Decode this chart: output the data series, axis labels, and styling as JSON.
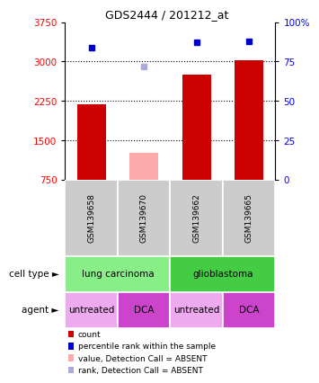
{
  "title": "GDS2444 / 201212_at",
  "samples": [
    "GSM139658",
    "GSM139670",
    "GSM139662",
    "GSM139665"
  ],
  "bar_values": [
    2180,
    1250,
    2750,
    3020
  ],
  "bar_colors": [
    "#cc0000",
    "#ffaaaa",
    "#cc0000",
    "#cc0000"
  ],
  "dot_pct": [
    84,
    72,
    87,
    88
  ],
  "dot_colors": [
    "#0000cc",
    "#aaaadd",
    "#0000cc",
    "#0000cc"
  ],
  "ylim_left": [
    750,
    3750
  ],
  "yticks_left": [
    750,
    1500,
    2250,
    3000,
    3750
  ],
  "yticks_right": [
    0,
    25,
    50,
    75,
    100
  ],
  "ylim_right": [
    0,
    100
  ],
  "cell_type_row": [
    {
      "label": "lung carcinoma",
      "span": [
        0,
        2
      ],
      "color": "#88ee88"
    },
    {
      "label": "glioblastoma",
      "span": [
        2,
        4
      ],
      "color": "#44cc44"
    }
  ],
  "agent_row": [
    {
      "label": "untreated",
      "span": [
        0,
        1
      ],
      "color": "#eeaaee"
    },
    {
      "label": "DCA",
      "span": [
        1,
        2
      ],
      "color": "#cc44cc"
    },
    {
      "label": "untreated",
      "span": [
        2,
        3
      ],
      "color": "#eeaaee"
    },
    {
      "label": "DCA",
      "span": [
        3,
        4
      ],
      "color": "#cc44cc"
    }
  ],
  "legend_items": [
    {
      "color": "#cc0000",
      "label": "count"
    },
    {
      "color": "#0000cc",
      "label": "percentile rank within the sample"
    },
    {
      "color": "#ffaaaa",
      "label": "value, Detection Call = ABSENT"
    },
    {
      "color": "#aaaadd",
      "label": "rank, Detection Call = ABSENT"
    }
  ],
  "grid_yticks": [
    1500,
    2250,
    3000
  ],
  "bg_color": "#ffffff",
  "sample_box_color": "#cccccc"
}
